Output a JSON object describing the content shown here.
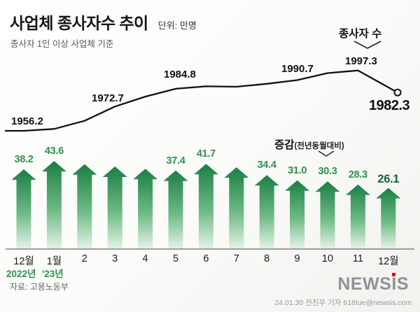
{
  "header": {
    "title": "사업체 종사자수 추이",
    "unit_label": "단위: 만명",
    "subtitle": "종사자 1인 이상 사업체 기준"
  },
  "series_labels": {
    "line": "종사자 수",
    "bar": "증감",
    "bar_qualifier": "(전년동월대비)"
  },
  "axis": {
    "months": [
      "12월",
      "1월",
      "2",
      "3",
      "4",
      "5",
      "6",
      "7",
      "8",
      "9",
      "10",
      "11",
      "12월"
    ],
    "year_left": "2022년",
    "year_right": "'23년"
  },
  "footer": {
    "source": "자료: 고용노동부",
    "logo": "NEWSIS",
    "credit": "24.01.30 전진우 기자 618tue@newsis.com"
  },
  "colors": {
    "bar_gradient_top": "#1b7f44",
    "bar_gradient_mid": "#6cb983",
    "bar_gradient_bottom": "#e3f2e6",
    "green_text": "#2e9150",
    "line": "#111111",
    "logo_red": "#e60012"
  },
  "chart_data": [
    {
      "type": "line",
      "name": "종사자 수 (만명)",
      "x": [
        "12월('22)",
        "1월",
        "2월",
        "3월",
        "4월",
        "5월",
        "6월",
        "7월",
        "8월",
        "9월",
        "10월",
        "11월",
        "12월('23)"
      ],
      "values": [
        1956.2,
        1957.5,
        1963.0,
        1972.7,
        1979.5,
        1984.8,
        1986.5,
        1986.2,
        1988.2,
        1990.7,
        1995.5,
        1997.3,
        1982.3
      ],
      "point_labels": [
        {
          "index": 0,
          "text": "1956.2"
        },
        {
          "index": 3,
          "text": "1972.7"
        },
        {
          "index": 5,
          "text": "1984.8"
        },
        {
          "index": 9,
          "text": "1990.7"
        },
        {
          "index": 11,
          "text": "1997.3"
        },
        {
          "index": 12,
          "text": "1982.3"
        }
      ],
      "note": "values without printed labels are estimated from the line position"
    },
    {
      "type": "bar",
      "name": "증감(전년동월대비, 만명)",
      "x": [
        "12월('22)",
        "1월",
        "2월",
        "3월",
        "4월",
        "5월",
        "6월",
        "7월",
        "8월",
        "9월",
        "10월",
        "11월",
        "12월('23)"
      ],
      "values": [
        38.2,
        43.6,
        41.5,
        40.0,
        38.5,
        37.4,
        41.7,
        39.5,
        34.4,
        31.0,
        30.3,
        28.3,
        26.1
      ],
      "labeled": [
        true,
        true,
        false,
        false,
        false,
        true,
        true,
        false,
        true,
        true,
        true,
        true,
        true
      ],
      "note": "values without printed labels are estimated from bar heights"
    }
  ]
}
